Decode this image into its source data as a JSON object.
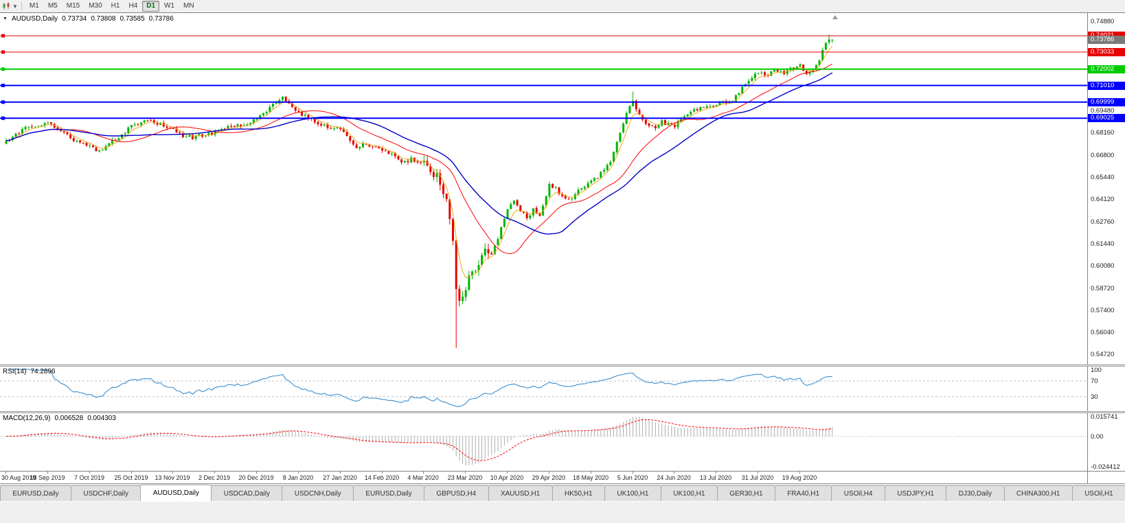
{
  "toolbar": {
    "timeframes": [
      {
        "label": "M1"
      },
      {
        "label": "M5"
      },
      {
        "label": "M15"
      },
      {
        "label": "M30"
      },
      {
        "label": "H1"
      },
      {
        "label": "H4"
      },
      {
        "label": "D1"
      },
      {
        "label": "W1"
      },
      {
        "label": "MN"
      }
    ],
    "active_timeframe": "D1"
  },
  "chart": {
    "header": {
      "symbol": "AUDUSD,Daily",
      "open": "0.73734",
      "high": "0.73808",
      "low": "0.73585",
      "close": "0.73786"
    },
    "scale": {
      "max": 0.754,
      "min": 0.541
    },
    "price_axis_labels": [
      "0.74880",
      "0.69480",
      "0.68160",
      "0.66800",
      "0.65440",
      "0.64120",
      "0.62760",
      "0.61440",
      "0.60080",
      "0.58720",
      "0.57400",
      "0.56040",
      "0.54720"
    ],
    "hlines": [
      {
        "price": "0.74021",
        "value": 0.74021,
        "color": "#e60000",
        "width": 1
      },
      {
        "price": "0.73033",
        "value": 0.73033,
        "color": "#e60000",
        "width": 1
      },
      {
        "price": "0.72002",
        "value": 0.72002,
        "color": "#00cc00",
        "width": 2
      },
      {
        "price": "0.71010",
        "value": 0.7101,
        "color": "#0000ff",
        "width": 2
      },
      {
        "price": "0.69999",
        "value": 0.69999,
        "color": "#0000ff",
        "width": 2
      },
      {
        "price": "0.69025",
        "value": 0.69025,
        "color": "#0000ff",
        "width": 2
      }
    ],
    "bid_box": {
      "price": "0.73786",
      "value": 0.73786,
      "color": "#7a7a7a"
    }
  },
  "rsi": {
    "name": "RSI(14)",
    "value": "74.2896",
    "period": 14,
    "line_color": "#4a96d2",
    "level_color": "#c0c0c0",
    "levels": [
      {
        "label": "100",
        "value": 100,
        "dashed": false
      },
      {
        "label": "70",
        "value": 70,
        "dashed": true
      },
      {
        "label": "30",
        "value": 30,
        "dashed": true
      }
    ]
  },
  "macd": {
    "name": "MACD(12,26,9)",
    "main": "0.006528",
    "signal": "0.004303",
    "fast": 12,
    "slow": 26,
    "smoothing": 9,
    "hist_color": "#ababab",
    "signal_color": "#ff0000",
    "zero_color": "#c8c8c8",
    "axis": [
      {
        "label": "0.015741",
        "value": 0.015741
      },
      {
        "label": "0.00",
        "value": 0
      },
      {
        "label": "-0.024412",
        "value": -0.024412
      }
    ]
  },
  "tabs": [
    {
      "label": "EURUSD,Daily",
      "active": false
    },
    {
      "label": "USDCHF,Daily",
      "active": false
    },
    {
      "label": "AUDUSD,Daily",
      "active": true
    },
    {
      "label": "USDCAD,Daily",
      "active": false
    },
    {
      "label": "USDCNH,Daily",
      "active": false
    },
    {
      "label": "EURUSD,Daily",
      "active": false
    },
    {
      "label": "GBPUSD,H4",
      "active": false
    },
    {
      "label": "XAUUSD,H1",
      "active": false
    },
    {
      "label": "HK50,H1",
      "active": false
    },
    {
      "label": "UK100,H1",
      "active": false
    },
    {
      "label": "UK100,H1",
      "active": false
    },
    {
      "label": "GER30,H1",
      "active": false
    },
    {
      "label": "FRA40,H1",
      "active": false
    },
    {
      "label": "USOil,H4",
      "active": false
    },
    {
      "label": "USDJPY,H1",
      "active": false
    },
    {
      "label": "DJ30,Daily",
      "active": false
    },
    {
      "label": "CHINA300,H1",
      "active": false
    },
    {
      "label": "USOil,H1",
      "active": false
    }
  ],
  "chart_data": {
    "type": "candlestick",
    "title": "AUDUSD,Daily",
    "symbol": "AUDUSD",
    "timeframe": "Daily",
    "ylim": [
      0.541,
      0.754
    ],
    "candles_count": 258,
    "label_every": 13,
    "x_labels": [
      "30 Aug 2019",
      "18 Sep 2019",
      "7 Oct 2019",
      "25 Oct 2019",
      "13 Nov 2019",
      "2 Dec 2019",
      "20 Dec 2019",
      "8 Jan 2020",
      "27 Jan 2020",
      "14 Feb 2020",
      "4 Mar 2020",
      "23 Mar 2020",
      "10 Apr 2020",
      "29 Apr 2020",
      "18 May 2020",
      "5 Jun 2020",
      "24 Jun 2020",
      "13 Jul 2020",
      "31 Jul 2020",
      "19 Aug 2020"
    ],
    "colors": {
      "up": "#00b400",
      "down": "#e60000"
    },
    "close_anchors": [
      [
        0,
        0.677
      ],
      [
        3,
        0.68
      ],
      [
        6,
        0.6838
      ],
      [
        9,
        0.6862
      ],
      [
        13,
        0.6875
      ],
      [
        16,
        0.6842
      ],
      [
        19,
        0.68
      ],
      [
        22,
        0.6763
      ],
      [
        26,
        0.6732
      ],
      [
        29,
        0.6706
      ],
      [
        32,
        0.6748
      ],
      [
        35,
        0.6792
      ],
      [
        39,
        0.685
      ],
      [
        42,
        0.6878
      ],
      [
        45,
        0.6885
      ],
      [
        48,
        0.6862
      ],
      [
        52,
        0.6832
      ],
      [
        55,
        0.68
      ],
      [
        58,
        0.6786
      ],
      [
        61,
        0.68
      ],
      [
        65,
        0.6816
      ],
      [
        68,
        0.6838
      ],
      [
        71,
        0.6854
      ],
      [
        74,
        0.6866
      ],
      [
        78,
        0.6896
      ],
      [
        81,
        0.6942
      ],
      [
        84,
        0.7006
      ],
      [
        86,
        0.7024
      ],
      [
        88,
        0.6994
      ],
      [
        91,
        0.694
      ],
      [
        94,
        0.69
      ],
      [
        97,
        0.6866
      ],
      [
        100,
        0.6852
      ],
      [
        104,
        0.6844
      ],
      [
        106,
        0.6792
      ],
      [
        109,
        0.673
      ],
      [
        112,
        0.6746
      ],
      [
        115,
        0.6728
      ],
      [
        117,
        0.671
      ],
      [
        120,
        0.6678
      ],
      [
        123,
        0.6624
      ],
      [
        126,
        0.6656
      ],
      [
        128,
        0.6644
      ],
      [
        130,
        0.6628
      ],
      [
        132,
        0.6584
      ],
      [
        134,
        0.6558
      ],
      [
        136,
        0.646
      ],
      [
        138,
        0.632
      ],
      [
        139,
        0.618
      ],
      [
        140,
        0.588
      ],
      [
        141,
        0.577
      ],
      [
        142,
        0.5832
      ],
      [
        143,
        0.5882
      ],
      [
        145,
        0.5962
      ],
      [
        147,
        0.601
      ],
      [
        149,
        0.6132
      ],
      [
        151,
        0.6092
      ],
      [
        153,
        0.618
      ],
      [
        156,
        0.634
      ],
      [
        158,
        0.6402
      ],
      [
        160,
        0.6336
      ],
      [
        162,
        0.63
      ],
      [
        164,
        0.6346
      ],
      [
        166,
        0.6312
      ],
      [
        169,
        0.65
      ],
      [
        171,
        0.6482
      ],
      [
        173,
        0.642
      ],
      [
        175,
        0.6412
      ],
      [
        177,
        0.6442
      ],
      [
        179,
        0.6472
      ],
      [
        182,
        0.653
      ],
      [
        184,
        0.6546
      ],
      [
        186,
        0.6592
      ],
      [
        188,
        0.6642
      ],
      [
        190,
        0.6752
      ],
      [
        192,
        0.688
      ],
      [
        194,
        0.6972
      ],
      [
        195,
        0.7
      ],
      [
        196,
        0.6958
      ],
      [
        198,
        0.6892
      ],
      [
        200,
        0.6852
      ],
      [
        202,
        0.6846
      ],
      [
        204,
        0.688
      ],
      [
        206,
        0.6866
      ],
      [
        208,
        0.686
      ],
      [
        210,
        0.6892
      ],
      [
        212,
        0.692
      ],
      [
        214,
        0.6946
      ],
      [
        216,
        0.6962
      ],
      [
        218,
        0.6976
      ],
      [
        221,
        0.6986
      ],
      [
        223,
        0.7012
      ],
      [
        225,
        0.6992
      ],
      [
        227,
        0.7032
      ],
      [
        229,
        0.7082
      ],
      [
        231,
        0.7122
      ],
      [
        234,
        0.7186
      ],
      [
        236,
        0.7156
      ],
      [
        238,
        0.7182
      ],
      [
        240,
        0.7192
      ],
      [
        242,
        0.7166
      ],
      [
        244,
        0.7202
      ],
      [
        247,
        0.7226
      ],
      [
        249,
        0.7172
      ],
      [
        251,
        0.7188
      ],
      [
        253,
        0.7262
      ],
      [
        254,
        0.7312
      ],
      [
        255,
        0.7356
      ],
      [
        256,
        0.7376
      ],
      [
        257,
        0.73786
      ]
    ],
    "special": {
      "crash_low_index": 140,
      "crash_low": 0.551,
      "june_high_index": 195,
      "june_high": 0.7064,
      "breakout_high_index": 256,
      "breakout_high": 0.74096,
      "last_open": 0.73734,
      "last_high": 0.73808,
      "last_low": 0.73585,
      "last_close": 0.73786
    },
    "moving_averages": [
      {
        "period": 5,
        "type": "ema",
        "color": "#f0a818",
        "width": 1
      },
      {
        "period": 20,
        "type": "sma",
        "color": "#ff0000",
        "width": 1
      },
      {
        "period": 34,
        "type": "sma",
        "color": "#0000c8",
        "width": 1.4
      }
    ]
  }
}
